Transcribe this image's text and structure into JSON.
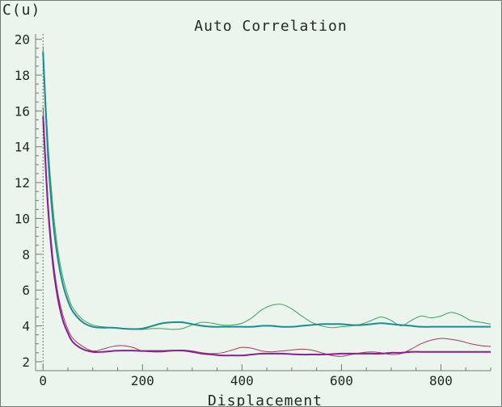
{
  "chart_data": {
    "type": "line",
    "title": "Auto Correlation",
    "xlabel": "Displacement",
    "ylabel": "C(u)",
    "xlim": [
      -15,
      900
    ],
    "ylim": [
      1.5,
      20.3
    ],
    "xticks": [
      0,
      200,
      400,
      600,
      800
    ],
    "yticks": [
      2,
      4,
      6,
      8,
      10,
      12,
      14,
      16,
      18,
      20
    ],
    "grid": false,
    "zero_line": true,
    "series": [
      {
        "color": "#3f9f5a",
        "width": 1,
        "x": [
          0,
          10,
          20,
          30,
          40,
          50,
          60,
          80,
          100,
          120,
          140,
          160,
          180,
          200,
          220,
          240,
          260,
          280,
          300,
          320,
          340,
          360,
          380,
          400,
          420,
          440,
          460,
          480,
          500,
          520,
          540,
          560,
          580,
          600,
          620,
          640,
          660,
          680,
          700,
          720,
          740,
          760,
          780,
          800,
          820,
          840,
          860,
          880,
          900
        ],
        "y": [
          19.6,
          14.2,
          10.6,
          8.2,
          6.7,
          5.7,
          5.0,
          4.35,
          4.05,
          3.95,
          3.9,
          3.85,
          3.82,
          3.8,
          3.85,
          3.85,
          3.8,
          3.85,
          4.05,
          4.2,
          4.15,
          4.05,
          4.05,
          4.15,
          4.45,
          4.9,
          5.15,
          5.2,
          4.95,
          4.55,
          4.2,
          4.0,
          3.9,
          3.95,
          4.0,
          4.1,
          4.3,
          4.5,
          4.3,
          4.0,
          4.3,
          4.55,
          4.45,
          4.55,
          4.75,
          4.6,
          4.3,
          4.2,
          4.1
        ]
      },
      {
        "color": "#1f8a92",
        "width": 2,
        "x": [
          0,
          10,
          20,
          30,
          40,
          50,
          60,
          80,
          100,
          120,
          140,
          160,
          180,
          200,
          220,
          240,
          260,
          280,
          300,
          320,
          340,
          360,
          380,
          400,
          420,
          440,
          460,
          480,
          500,
          520,
          540,
          560,
          580,
          600,
          620,
          640,
          660,
          680,
          700,
          720,
          740,
          760,
          780,
          800,
          820,
          840,
          860,
          880,
          900
        ],
        "y": [
          19.3,
          13.5,
          9.9,
          7.7,
          6.3,
          5.4,
          4.8,
          4.2,
          3.95,
          3.9,
          3.9,
          3.85,
          3.82,
          3.85,
          4.0,
          4.15,
          4.2,
          4.2,
          4.1,
          4.0,
          3.95,
          3.95,
          3.95,
          3.95,
          3.95,
          4.0,
          4.0,
          3.95,
          3.95,
          4.0,
          4.05,
          4.1,
          4.1,
          4.1,
          4.05,
          4.05,
          4.1,
          4.15,
          4.1,
          4.05,
          4.0,
          3.95,
          3.95,
          3.95,
          3.95,
          3.95,
          3.95,
          3.95,
          3.95
        ]
      },
      {
        "color": "#a33a5e",
        "width": 1,
        "x": [
          0,
          10,
          20,
          30,
          40,
          50,
          60,
          80,
          100,
          120,
          140,
          160,
          180,
          200,
          220,
          240,
          260,
          280,
          300,
          320,
          340,
          360,
          380,
          400,
          420,
          440,
          460,
          480,
          500,
          520,
          540,
          560,
          580,
          600,
          620,
          640,
          660,
          680,
          700,
          720,
          740,
          760,
          780,
          800,
          820,
          840,
          860,
          880,
          900
        ],
        "y": [
          16.2,
          11.0,
          7.8,
          5.8,
          4.6,
          3.8,
          3.3,
          2.85,
          2.6,
          2.7,
          2.85,
          2.9,
          2.8,
          2.6,
          2.55,
          2.55,
          2.6,
          2.65,
          2.6,
          2.5,
          2.45,
          2.5,
          2.65,
          2.8,
          2.75,
          2.6,
          2.55,
          2.6,
          2.65,
          2.7,
          2.65,
          2.5,
          2.35,
          2.3,
          2.4,
          2.5,
          2.55,
          2.5,
          2.4,
          2.45,
          2.7,
          3.0,
          3.2,
          3.3,
          3.25,
          3.15,
          3.0,
          2.9,
          2.85
        ]
      },
      {
        "color": "#8b1f96",
        "width": 2,
        "x": [
          0,
          10,
          20,
          30,
          40,
          50,
          60,
          80,
          100,
          120,
          140,
          160,
          180,
          200,
          220,
          240,
          260,
          280,
          300,
          320,
          340,
          360,
          380,
          400,
          420,
          440,
          460,
          480,
          500,
          520,
          540,
          560,
          580,
          600,
          620,
          640,
          660,
          680,
          700,
          720,
          740,
          760,
          780,
          800,
          820,
          840,
          860,
          880,
          900
        ],
        "y": [
          15.7,
          10.6,
          7.4,
          5.5,
          4.3,
          3.6,
          3.1,
          2.7,
          2.55,
          2.55,
          2.6,
          2.62,
          2.62,
          2.6,
          2.6,
          2.6,
          2.62,
          2.62,
          2.55,
          2.45,
          2.4,
          2.35,
          2.35,
          2.35,
          2.4,
          2.45,
          2.45,
          2.45,
          2.42,
          2.4,
          2.4,
          2.4,
          2.42,
          2.45,
          2.45,
          2.45,
          2.45,
          2.45,
          2.5,
          2.5,
          2.55,
          2.55,
          2.55,
          2.55,
          2.55,
          2.55,
          2.55,
          2.55,
          2.55
        ]
      }
    ]
  }
}
